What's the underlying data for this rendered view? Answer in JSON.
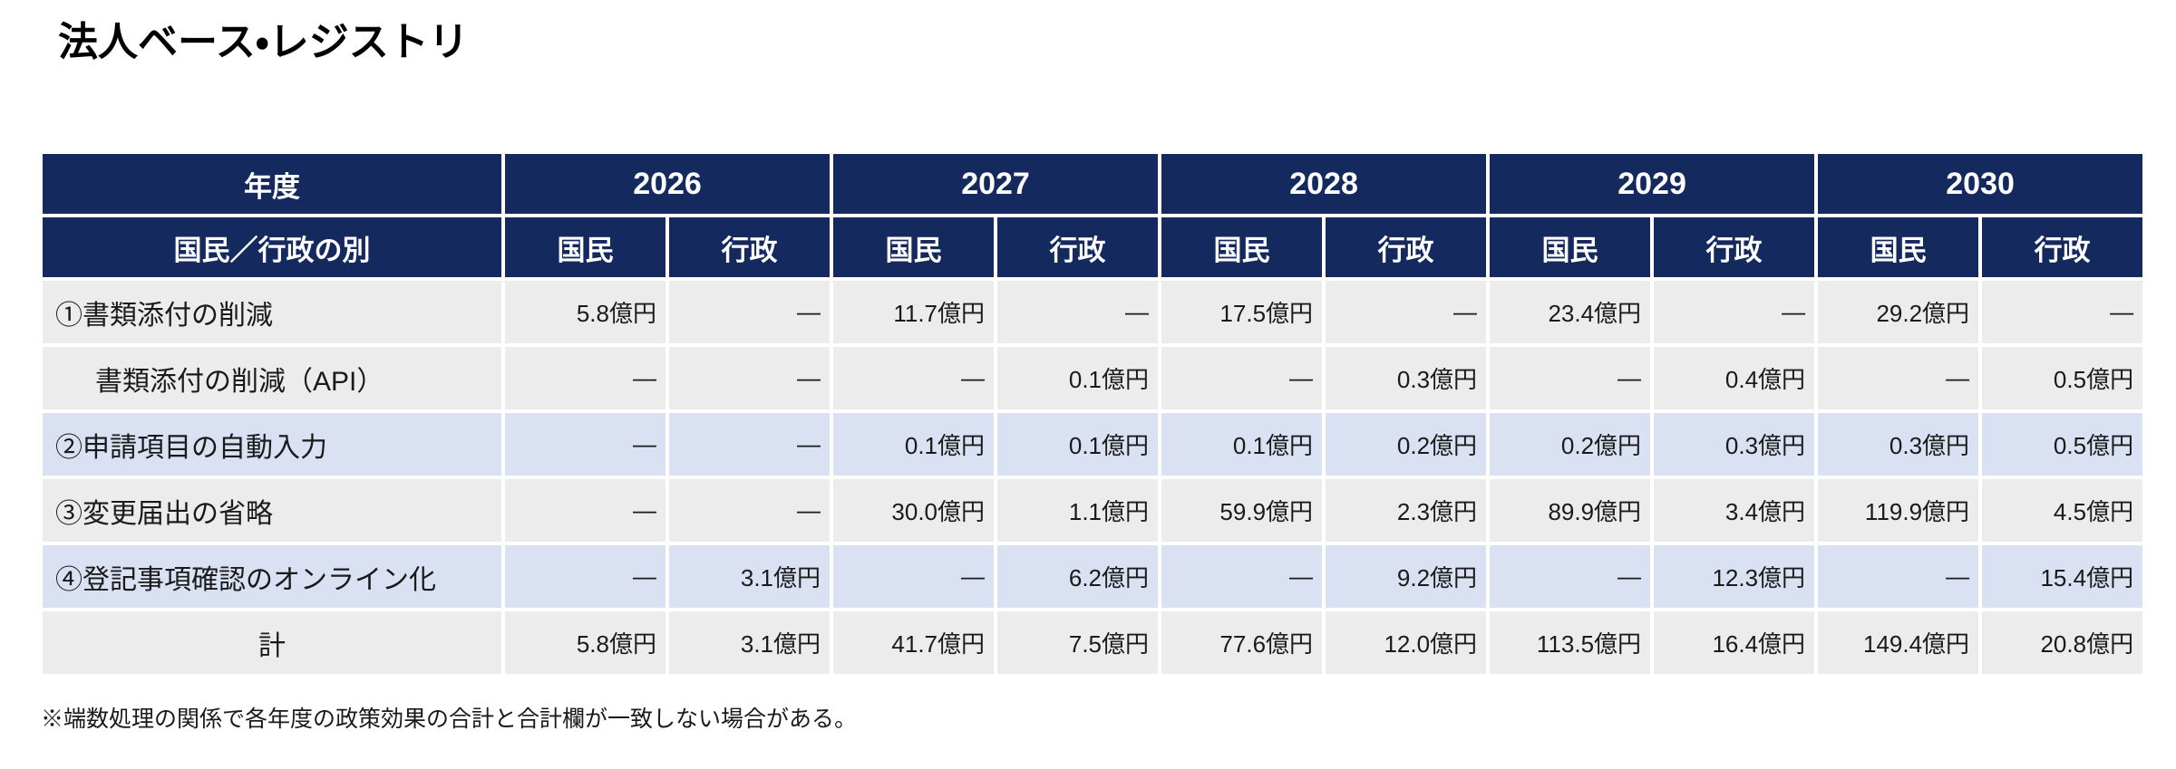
{
  "title": "法人ベース・レジストリ",
  "table": {
    "corner_label": "年度",
    "subheader_label": "国民／行政の別",
    "years": [
      "2026",
      "2027",
      "2028",
      "2029",
      "2030"
    ],
    "col_labels": [
      "国民",
      "行政"
    ],
    "rows": [
      {
        "label": "①書類添付の削減",
        "indent": false,
        "align": "left",
        "shade": "gray",
        "values": [
          "5.8億円",
          "—",
          "11.7億円",
          "—",
          "17.5億円",
          "—",
          "23.4億円",
          "—",
          "29.2億円",
          "—"
        ]
      },
      {
        "label": "書類添付の削減（API）",
        "indent": true,
        "align": "left",
        "shade": "gray",
        "values": [
          "—",
          "—",
          "—",
          "0.1億円",
          "—",
          "0.3億円",
          "—",
          "0.4億円",
          "—",
          "0.5億円"
        ]
      },
      {
        "label": "②申請項目の自動入力",
        "indent": false,
        "align": "left",
        "shade": "blue",
        "values": [
          "—",
          "—",
          "0.1億円",
          "0.1億円",
          "0.1億円",
          "0.2億円",
          "0.2億円",
          "0.3億円",
          "0.3億円",
          "0.5億円"
        ]
      },
      {
        "label": "③変更届出の省略",
        "indent": false,
        "align": "left",
        "shade": "gray",
        "values": [
          "—",
          "—",
          "30.0億円",
          "1.1億円",
          "59.9億円",
          "2.3億円",
          "89.9億円",
          "3.4億円",
          "119.9億円",
          "4.5億円"
        ]
      },
      {
        "label": "④登記事項確認のオンライン化",
        "indent": false,
        "align": "left",
        "shade": "blue",
        "values": [
          "—",
          "3.1億円",
          "—",
          "6.2億円",
          "—",
          "9.2億円",
          "—",
          "12.3億円",
          "—",
          "15.4億円"
        ]
      },
      {
        "label": "計",
        "indent": false,
        "align": "center",
        "shade": "gray",
        "values": [
          "5.8億円",
          "3.1億円",
          "41.7億円",
          "7.5億円",
          "77.6億円",
          "12.0億円",
          "113.5億円",
          "16.4億円",
          "149.4億円",
          "20.8億円"
        ]
      }
    ]
  },
  "footnote": "※端数処理の関係で各年度の政策効果の合計と合計欄が一致しない場合がある。",
  "colors": {
    "header_bg": "#14295e",
    "header_text": "#ffffff",
    "row_gray": "#ececec",
    "row_blue": "#d9e1f2",
    "body_text": "#1a1a1a"
  }
}
